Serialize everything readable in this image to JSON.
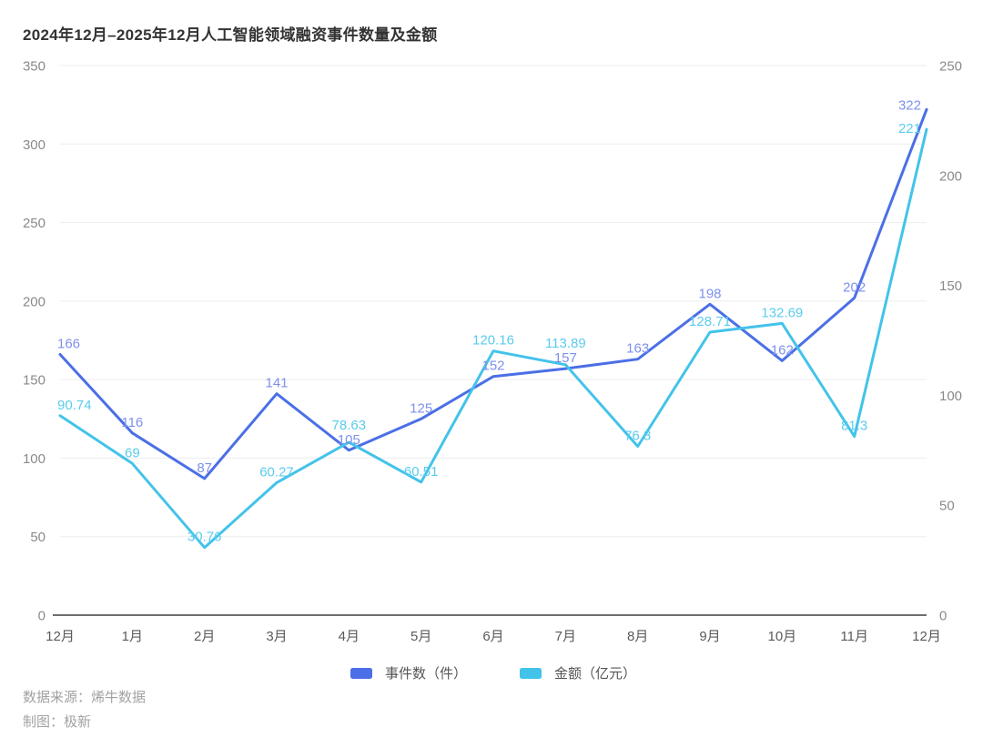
{
  "title": "2024年12月–2025年12月人工智能领域融资事件数量及金额",
  "legend": {
    "events_label": "事件数（件）",
    "amounts_label": "金额（亿元）"
  },
  "footer": {
    "source_line": "数据来源：烯牛数据",
    "credit_line": "制图：极新"
  },
  "chart_data": {
    "type": "line",
    "title": "2024年12月–2025年12月人工智能领域融资事件数量及金额",
    "categories": [
      "12月",
      "1月",
      "2月",
      "3月",
      "4月",
      "5月",
      "6月",
      "7月",
      "8月",
      "9月",
      "10月",
      "11月",
      "12月"
    ],
    "series": [
      {
        "name": "事件数（件）",
        "axis": "left",
        "color": "#4b6fe6",
        "label_color": "#7e90ec",
        "values": [
          166,
          116,
          87,
          141,
          105,
          125,
          152,
          157,
          163,
          198,
          162,
          202,
          322
        ]
      },
      {
        "name": "金额（亿元）",
        "axis": "right",
        "color": "#43c3ea",
        "label_color": "#5accee",
        "values": [
          90.74,
          69,
          30.76,
          60.27,
          78.63,
          60.51,
          120.16,
          113.89,
          76.8,
          128.71,
          132.69,
          81.3,
          221
        ]
      }
    ],
    "left_axis": {
      "min": 0,
      "max": 350,
      "step": 50,
      "ticks": [
        0,
        50,
        100,
        150,
        200,
        250,
        300,
        350
      ]
    },
    "right_axis": {
      "min": 0,
      "max": 250,
      "step": 50,
      "ticks": [
        0,
        50,
        100,
        150,
        200,
        250
      ]
    },
    "grid": true,
    "legend_position": "bottom",
    "colors": {
      "grid_line": "#ededed",
      "axis_line": "#6f6f6f",
      "tick_label": "#8a8a8a",
      "x_label": "#5a5a5a"
    }
  }
}
